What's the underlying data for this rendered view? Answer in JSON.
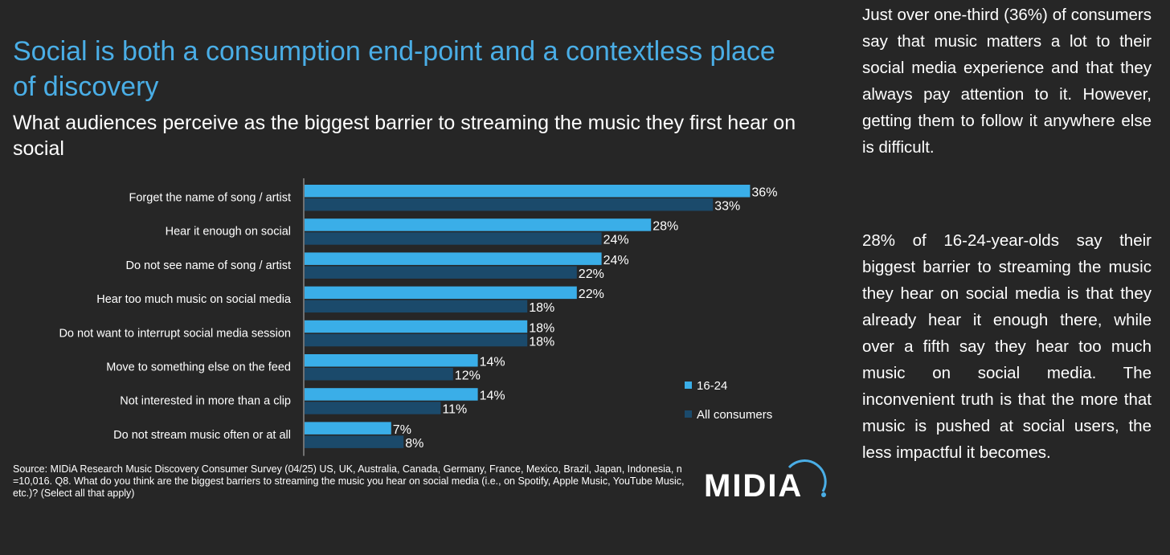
{
  "title": "Social is both a consumption end-point and a contextless place of discovery",
  "subtitle": "What audiences perceive as the biggest barrier to streaming the music they first hear on social",
  "chart_data": {
    "type": "bar",
    "orientation": "horizontal",
    "categories": [
      "Forget the name of song / artist",
      "Hear it enough on social",
      "Do not see name of song / artist",
      "Hear too much music on social media",
      "Do not want to interrupt social media session",
      "Move to something else on the feed",
      "Not interested in more than a clip",
      "Do not stream music often or at all"
    ],
    "series": [
      {
        "name": "16-24",
        "color": "#3aaee8",
        "values": [
          36,
          28,
          24,
          22,
          18,
          14,
          14,
          7
        ]
      },
      {
        "name": "All consumers",
        "color": "#1b4a6b",
        "values": [
          33,
          24,
          22,
          18,
          18,
          12,
          11,
          8
        ]
      }
    ],
    "value_suffix": "%",
    "xlim": [
      0,
      40
    ],
    "legend_position": "right",
    "grid": false
  },
  "source": "Source: MIDiA Research Music Discovery Consumer Survey (04/25) US, UK, Australia, Canada, Germany, France, Mexico, Brazil, Japan, Indonesia, n =10,016.  Q8. What do you think are the biggest barriers to streaming the music you hear on social media (i.e., on Spotify, Apple Music, YouTube Music, etc.)? (Select all that apply)",
  "logo_text": "MIDiA",
  "side_text": [
    "Just over one-third (36%) of consumers say that music matters a lot to their social media experience and that they always pay attention to it. However, getting them to follow it anywhere else is difficult.",
    "28% of 16-24-year-olds say their biggest barrier to streaming the music they hear on social media is that they already hear it enough there, while over a fifth say they hear too much music on social media. The inconvenient truth is that the more that music is pushed at social users, the less impactful it becomes."
  ]
}
